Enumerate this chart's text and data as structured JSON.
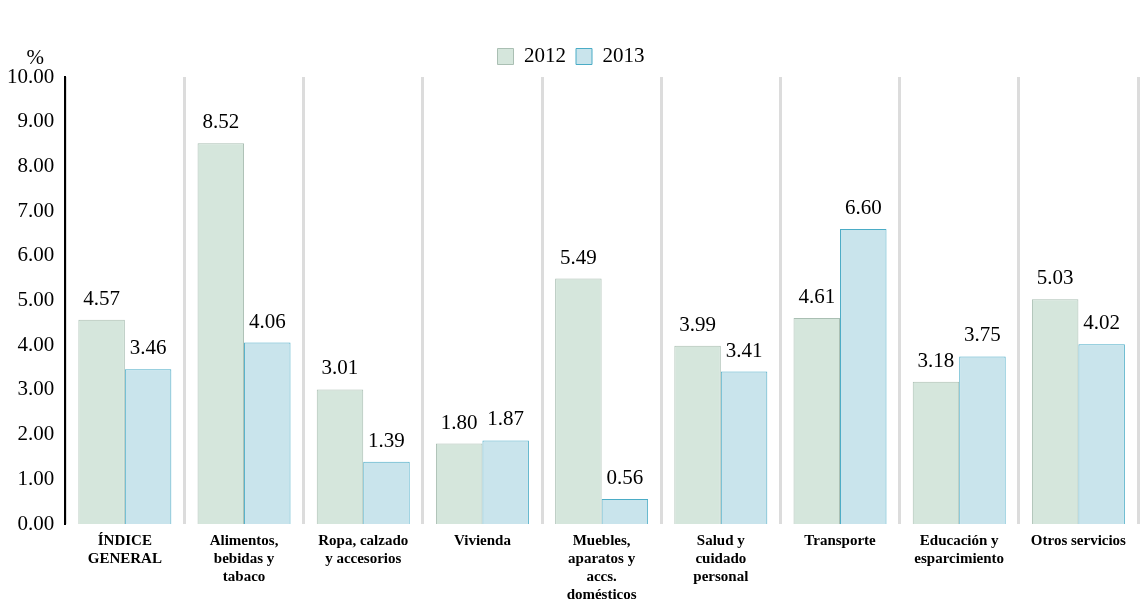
{
  "chart_data": {
    "type": "bar",
    "ylabel": "%",
    "categories": [
      "ÍNDICE GENERAL",
      "Alimentos, bebidas y tabaco",
      "Ropa, calzado y accesorios",
      "Vivienda",
      "Muebles, aparatos y accs. domésticos",
      "Salud y cuidado personal",
      "Transporte",
      "Educación y esparcimiento",
      "Otros servicios"
    ],
    "series": [
      {
        "name": "2012",
        "color": "#d5e6dc",
        "values": [
          4.57,
          8.52,
          3.01,
          1.8,
          5.49,
          3.99,
          4.61,
          3.18,
          5.03
        ],
        "value_labels": [
          "4.57",
          "8.52",
          "3.01",
          "1.80",
          "5.49",
          "3.99",
          "4.61",
          "3.18",
          "5.03"
        ]
      },
      {
        "name": "2013",
        "color": "#c9e4ec",
        "values": [
          3.46,
          4.06,
          1.39,
          1.87,
          0.56,
          3.41,
          6.6,
          3.75,
          4.02
        ],
        "value_labels": [
          "3.46",
          "4.06",
          "1.39",
          "1.87",
          "0.56",
          "3.41",
          "6.60",
          "3.75",
          "4.02"
        ]
      }
    ],
    "ylim": [
      0,
      10
    ],
    "yticks": [
      {
        "value": 0,
        "label": "0.00"
      },
      {
        "value": 1,
        "label": "1.00"
      },
      {
        "value": 2,
        "label": "2.00"
      },
      {
        "value": 3,
        "label": "3.00"
      },
      {
        "value": 4,
        "label": "4.00"
      },
      {
        "value": 5,
        "label": "5.00"
      },
      {
        "value": 6,
        "label": "6.00"
      },
      {
        "value": 7,
        "label": "7.00"
      },
      {
        "value": 8,
        "label": "8.00"
      },
      {
        "value": 9,
        "label": "9.00"
      },
      {
        "value": 10,
        "label": "10.00"
      }
    ],
    "grid": "x",
    "legend": "top"
  }
}
